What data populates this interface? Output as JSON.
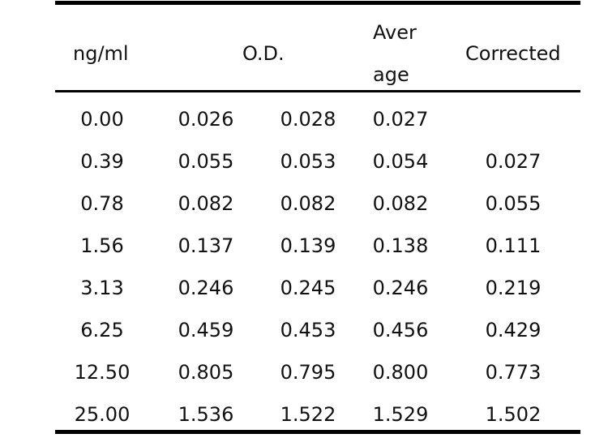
{
  "table": {
    "headers": {
      "concentration": "ng/ml",
      "od": "O.D.",
      "average_line1": "Aver",
      "average_line2": "age",
      "corrected": "Corrected"
    },
    "rows": [
      {
        "conc": "0.00",
        "od1": "0.026",
        "od2": "0.028",
        "avg": "0.027",
        "corr": ""
      },
      {
        "conc": "0.39",
        "od1": "0.055",
        "od2": "0.053",
        "avg": "0.054",
        "corr": "0.027"
      },
      {
        "conc": "0.78",
        "od1": "0.082",
        "od2": "0.082",
        "avg": "0.082",
        "corr": "0.055"
      },
      {
        "conc": "1.56",
        "od1": "0.137",
        "od2": "0.139",
        "avg": "0.138",
        "corr": "0.111"
      },
      {
        "conc": "3.13",
        "od1": "0.246",
        "od2": "0.245",
        "avg": "0.246",
        "corr": "0.219"
      },
      {
        "conc": "6.25",
        "od1": "0.459",
        "od2": "0.453",
        "avg": "0.456",
        "corr": "0.429"
      },
      {
        "conc": "12.50",
        "od1": "0.805",
        "od2": "0.795",
        "avg": "0.800",
        "corr": "0.773"
      },
      {
        "conc": "25.00",
        "od1": "1.536",
        "od2": "1.522",
        "avg": "1.529",
        "corr": "1.502"
      }
    ]
  }
}
